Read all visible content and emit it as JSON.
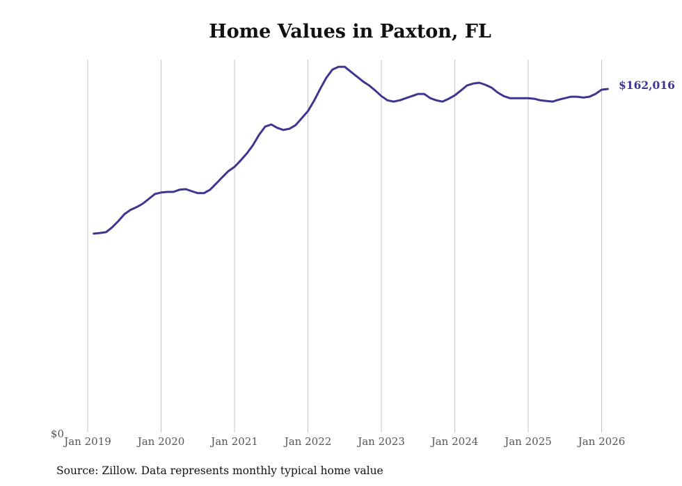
{
  "chart_data": {
    "type": "line",
    "title": "Home Values in Paxton, FL",
    "xlabel": "",
    "ylabel": "",
    "source_note": "Source: Zillow. Data represents monthly typical home value",
    "y_tick_labels": [
      "$0"
    ],
    "ylim": [
      0,
      176000
    ],
    "x_tick_labels": [
      "Jan 2019",
      "Jan 2020",
      "Jan 2021",
      "Jan 2022",
      "Jan 2023",
      "Jan 2024",
      "Jan 2025",
      "Jan 2026"
    ],
    "grid": "vertical",
    "line_color": "#3d3590",
    "end_label": "$162,016",
    "series": [
      {
        "name": "Typical home value",
        "start": "Feb 2019",
        "frequency": "monthly",
        "values": [
          93800,
          94100,
          94500,
          96800,
          99700,
          103000,
          105000,
          106300,
          107900,
          110200,
          112500,
          113200,
          113500,
          113500,
          114500,
          114800,
          113800,
          112900,
          112900,
          114500,
          117400,
          120400,
          123300,
          125300,
          128300,
          131600,
          135500,
          140400,
          144300,
          145300,
          143700,
          142700,
          143300,
          145000,
          148300,
          151600,
          156500,
          162100,
          167300,
          171200,
          172500,
          172500,
          170200,
          167900,
          165600,
          163700,
          161300,
          158700,
          156700,
          156100,
          156700,
          157700,
          158700,
          159700,
          159700,
          157700,
          156700,
          156100,
          157400,
          159000,
          161300,
          163700,
          164600,
          165000,
          164000,
          162700,
          160400,
          158700,
          157700,
          157700,
          157700,
          157700,
          157400,
          156700,
          156400,
          156100,
          157000,
          157700,
          158400,
          158400,
          158000,
          158400,
          159700,
          161700,
          162016
        ]
      }
    ]
  }
}
